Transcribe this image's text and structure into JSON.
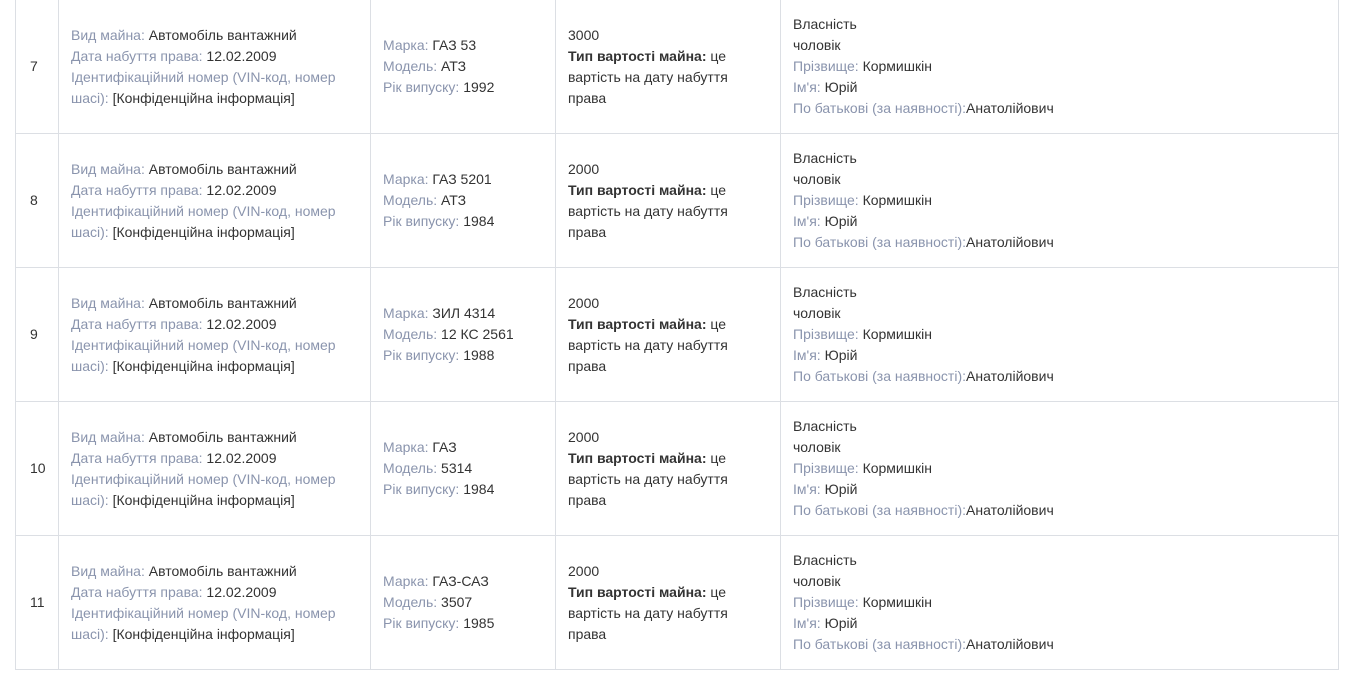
{
  "labels": {
    "type": "Вид майна:",
    "date": "Дата набуття права:",
    "vin": "Ідентифікаційний номер (VIN-код, номер шасі):",
    "brand": "Марка:",
    "model": "Модель:",
    "year": "Рік випуску:",
    "cost_type": "Тип вартості майна:",
    "surname": "Прізвище:",
    "name": "Ім'я:",
    "patronymic": "По батькові (за наявності):"
  },
  "rows": [
    {
      "number": "7",
      "type": "Автомобіль вантажний",
      "date": "12.02.2009",
      "vin": "[Конфіденційна інформація]",
      "brand": "ГАЗ 53",
      "model": "АТЗ",
      "year": "1992",
      "cost": "3000",
      "cost_type": "це вартість на дату набуття права",
      "ownership": "Власність",
      "relation": "чоловік",
      "surname": "Кормишкін",
      "name": "Юрій",
      "patronymic": "Анатолійович"
    },
    {
      "number": "8",
      "type": "Автомобіль вантажний",
      "date": "12.02.2009",
      "vin": "[Конфіденційна інформація]",
      "brand": "ГАЗ 5201",
      "model": "АТЗ",
      "year": "1984",
      "cost": "2000",
      "cost_type": "це вартість на дату набуття права",
      "ownership": "Власність",
      "relation": "чоловік",
      "surname": "Кормишкін",
      "name": "Юрій",
      "patronymic": "Анатолійович"
    },
    {
      "number": "9",
      "type": "Автомобіль вантажний",
      "date": "12.02.2009",
      "vin": "[Конфіденційна інформація]",
      "brand": "ЗИЛ 4314",
      "model": "12 КС 2561",
      "year": "1988",
      "cost": "2000",
      "cost_type": "це вартість на дату набуття права",
      "ownership": "Власність",
      "relation": "чоловік",
      "surname": "Кормишкін",
      "name": "Юрій",
      "patronymic": "Анатолійович"
    },
    {
      "number": "10",
      "type": "Автомобіль вантажний",
      "date": "12.02.2009",
      "vin": "[Конфіденційна інформація]",
      "brand": "ГАЗ",
      "model": "5314",
      "year": "1984",
      "cost": "2000",
      "cost_type": "це вартість на дату набуття права",
      "ownership": "Власність",
      "relation": "чоловік",
      "surname": "Кормишкін",
      "name": "Юрій",
      "patronymic": "Анатолійович"
    },
    {
      "number": "11",
      "type": "Автомобіль вантажний",
      "date": "12.02.2009",
      "vin": "[Конфіденційна інформація]",
      "brand": "ГАЗ-САЗ",
      "model": "3507",
      "year": "1985",
      "cost": "2000",
      "cost_type": "це вартість на дату набуття права",
      "ownership": "Власність",
      "relation": "чоловік",
      "surname": "Кормишкін",
      "name": "Юрій",
      "patronymic": "Анатолійович"
    }
  ]
}
